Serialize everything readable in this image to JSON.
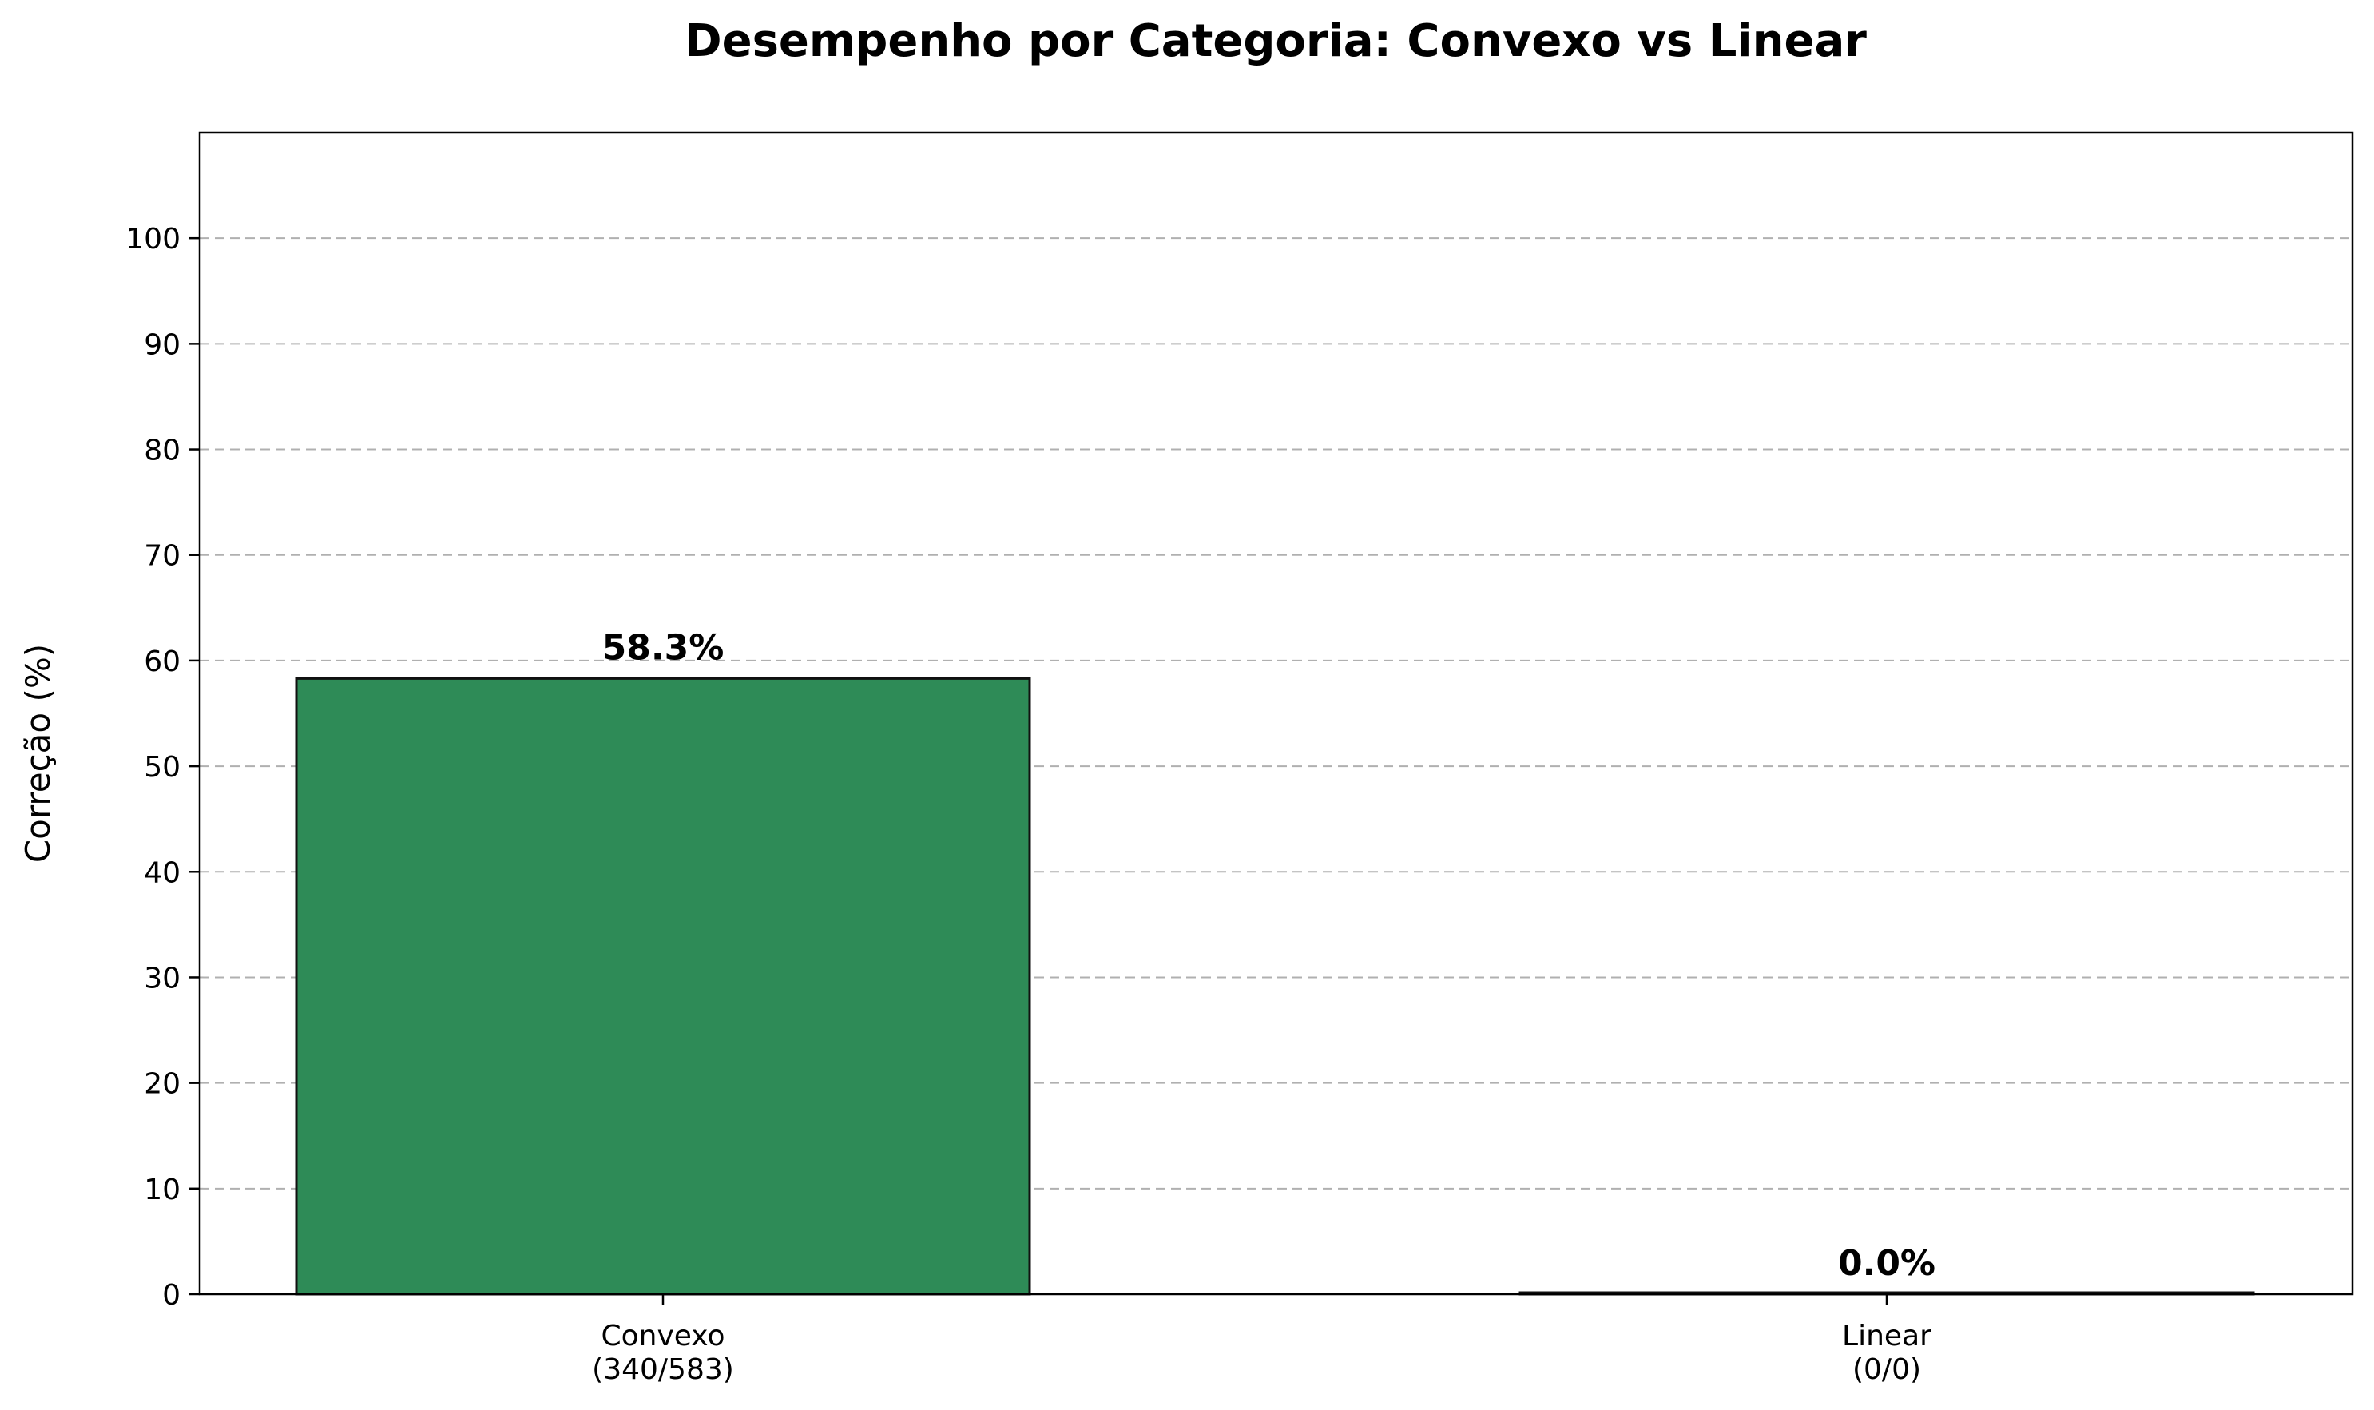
{
  "chart_data": {
    "type": "bar",
    "title": "Desempenho por Categoria: Convexo vs Linear",
    "xlabel": "",
    "ylabel": "Correção (%)",
    "ylim": [
      0,
      110
    ],
    "yticks": [
      0,
      10,
      20,
      30,
      40,
      50,
      60,
      70,
      80,
      90,
      100
    ],
    "grid": "y-dashed",
    "categories": [
      {
        "name": "Convexo",
        "sub": "(340/583)"
      },
      {
        "name": "Linear",
        "sub": "(0/0)"
      }
    ],
    "values": [
      58.3,
      0.0
    ],
    "data_labels": [
      "58.3%",
      "0.0%"
    ],
    "colors": [
      "#2e8b57",
      "#2e8b57"
    ]
  }
}
